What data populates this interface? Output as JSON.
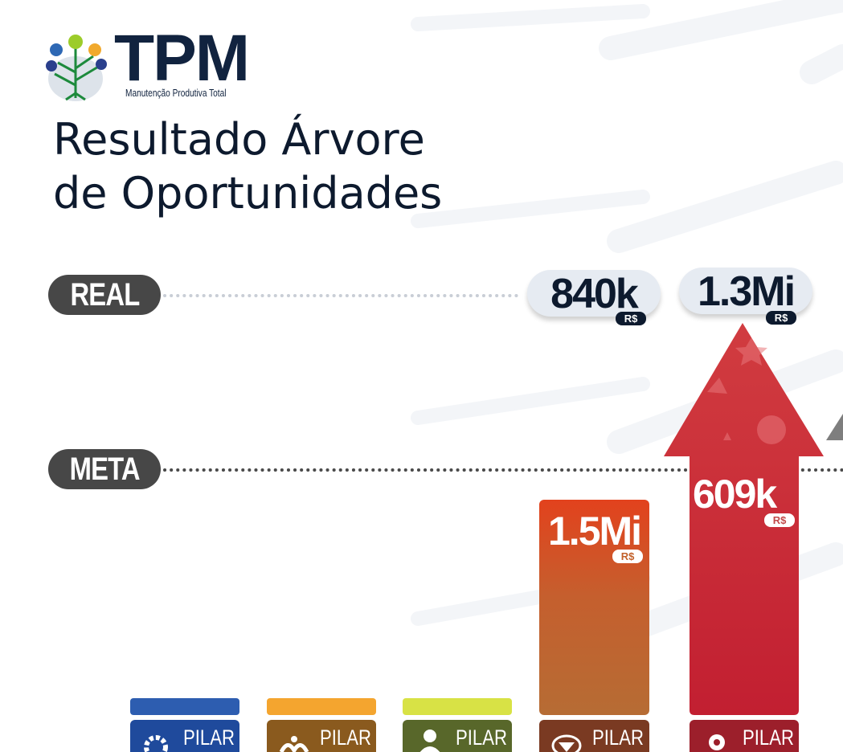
{
  "brand": {
    "logo_text": "TPM",
    "logo_subtitle": "Manutenção Produtiva Total"
  },
  "title": {
    "line1": "Resultado Árvore",
    "line2": "de Oportunidades"
  },
  "reference_lines": {
    "real_label": "REAL",
    "meta_label": "META"
  },
  "currency": "R$",
  "chart_data": {
    "type": "bar",
    "title": "Resultado Árvore de Oportunidades",
    "categories": [
      "PILAR",
      "PILAR",
      "PILAR",
      "PILAR",
      "PILAR"
    ],
    "series": [
      {
        "name": "META",
        "values": [
          null,
          null,
          null,
          1.5,
          0.609
        ],
        "labels": [
          "",
          "",
          "",
          "1.5Mi",
          "609k"
        ]
      },
      {
        "name": "REAL",
        "values": [
          null,
          null,
          null,
          0.84,
          1.3
        ],
        "labels": [
          "",
          "",
          "",
          "840k",
          "1.3Mi"
        ]
      }
    ],
    "unit": "R$",
    "pillar_colors": [
      "#2e5aa8",
      "#f2a331",
      "#d9de42",
      "#c75a28",
      "#c42838"
    ]
  },
  "pillars": [
    {
      "label": "PILAR",
      "icon": "gear-refresh-icon",
      "strip": "#2d5db0",
      "tab": "#1f4a9c"
    },
    {
      "label": "PILAR",
      "icon": "sprout-hand-icon",
      "strip": "#f4a52f",
      "tab": "#8a5a1e"
    },
    {
      "label": "PILAR",
      "icon": "person-icon",
      "strip": "#d8e245",
      "tab": "#58672a"
    },
    {
      "label": "PILAR",
      "icon": "hourglass-icon",
      "strip": "#c45f2a",
      "tab": "#7a3a22"
    },
    {
      "label": "PILAR",
      "icon": "gear-icon",
      "strip": "#c1262f",
      "tab": "#9c1f2b"
    }
  ],
  "colors": {
    "navy": "#0d1a2e",
    "pill_gray": "#474747",
    "bar_orange_top": "#e0421c",
    "bar_orange_bottom": "#b86d35",
    "arrow_red": "#c62b34"
  }
}
